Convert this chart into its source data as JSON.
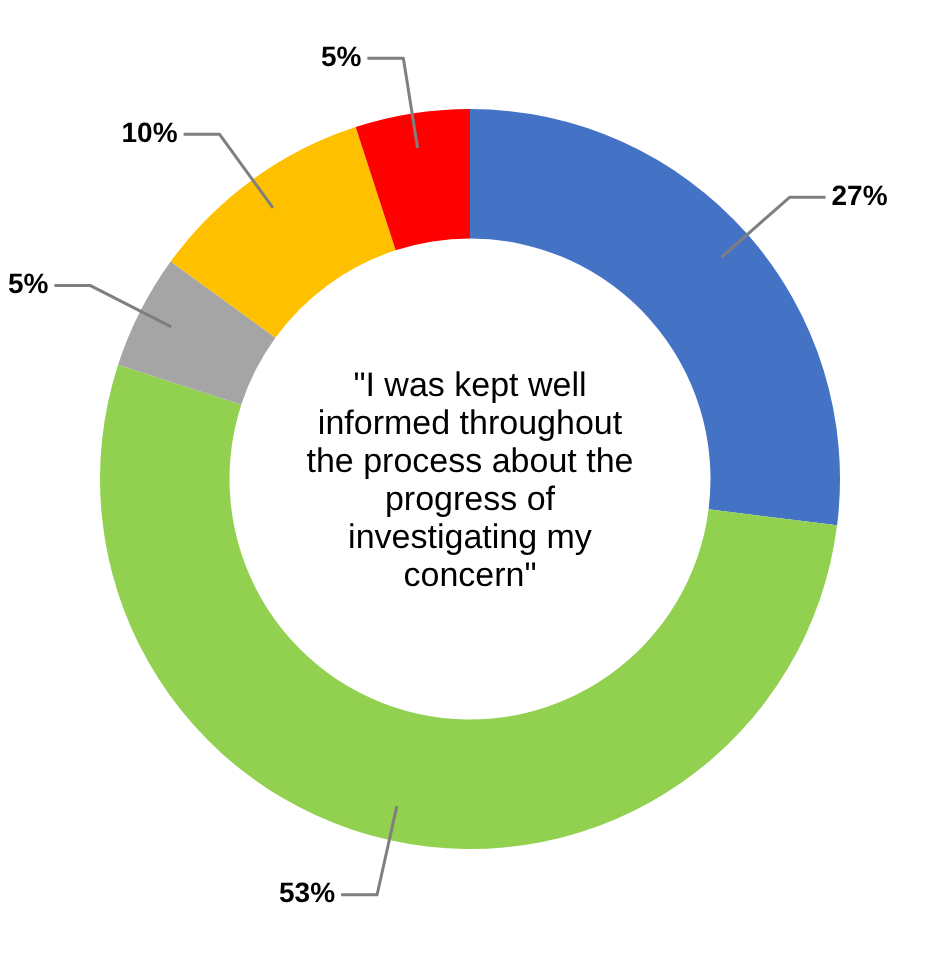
{
  "chart_data": {
    "type": "donut",
    "title": "\"I was kept well informed throughout the process about the progress of investigating my concern\"",
    "categories": [
      null,
      null,
      null,
      null,
      null
    ],
    "values": [
      27,
      53,
      5,
      10,
      5
    ],
    "colors": [
      "#4472c4",
      "#92d050",
      "#a5a5a5",
      "#ffc000",
      "#ff0000"
    ],
    "value_labels": [
      "27%",
      "53%",
      "5%",
      "10%",
      "5%"
    ],
    "legend": false
  }
}
